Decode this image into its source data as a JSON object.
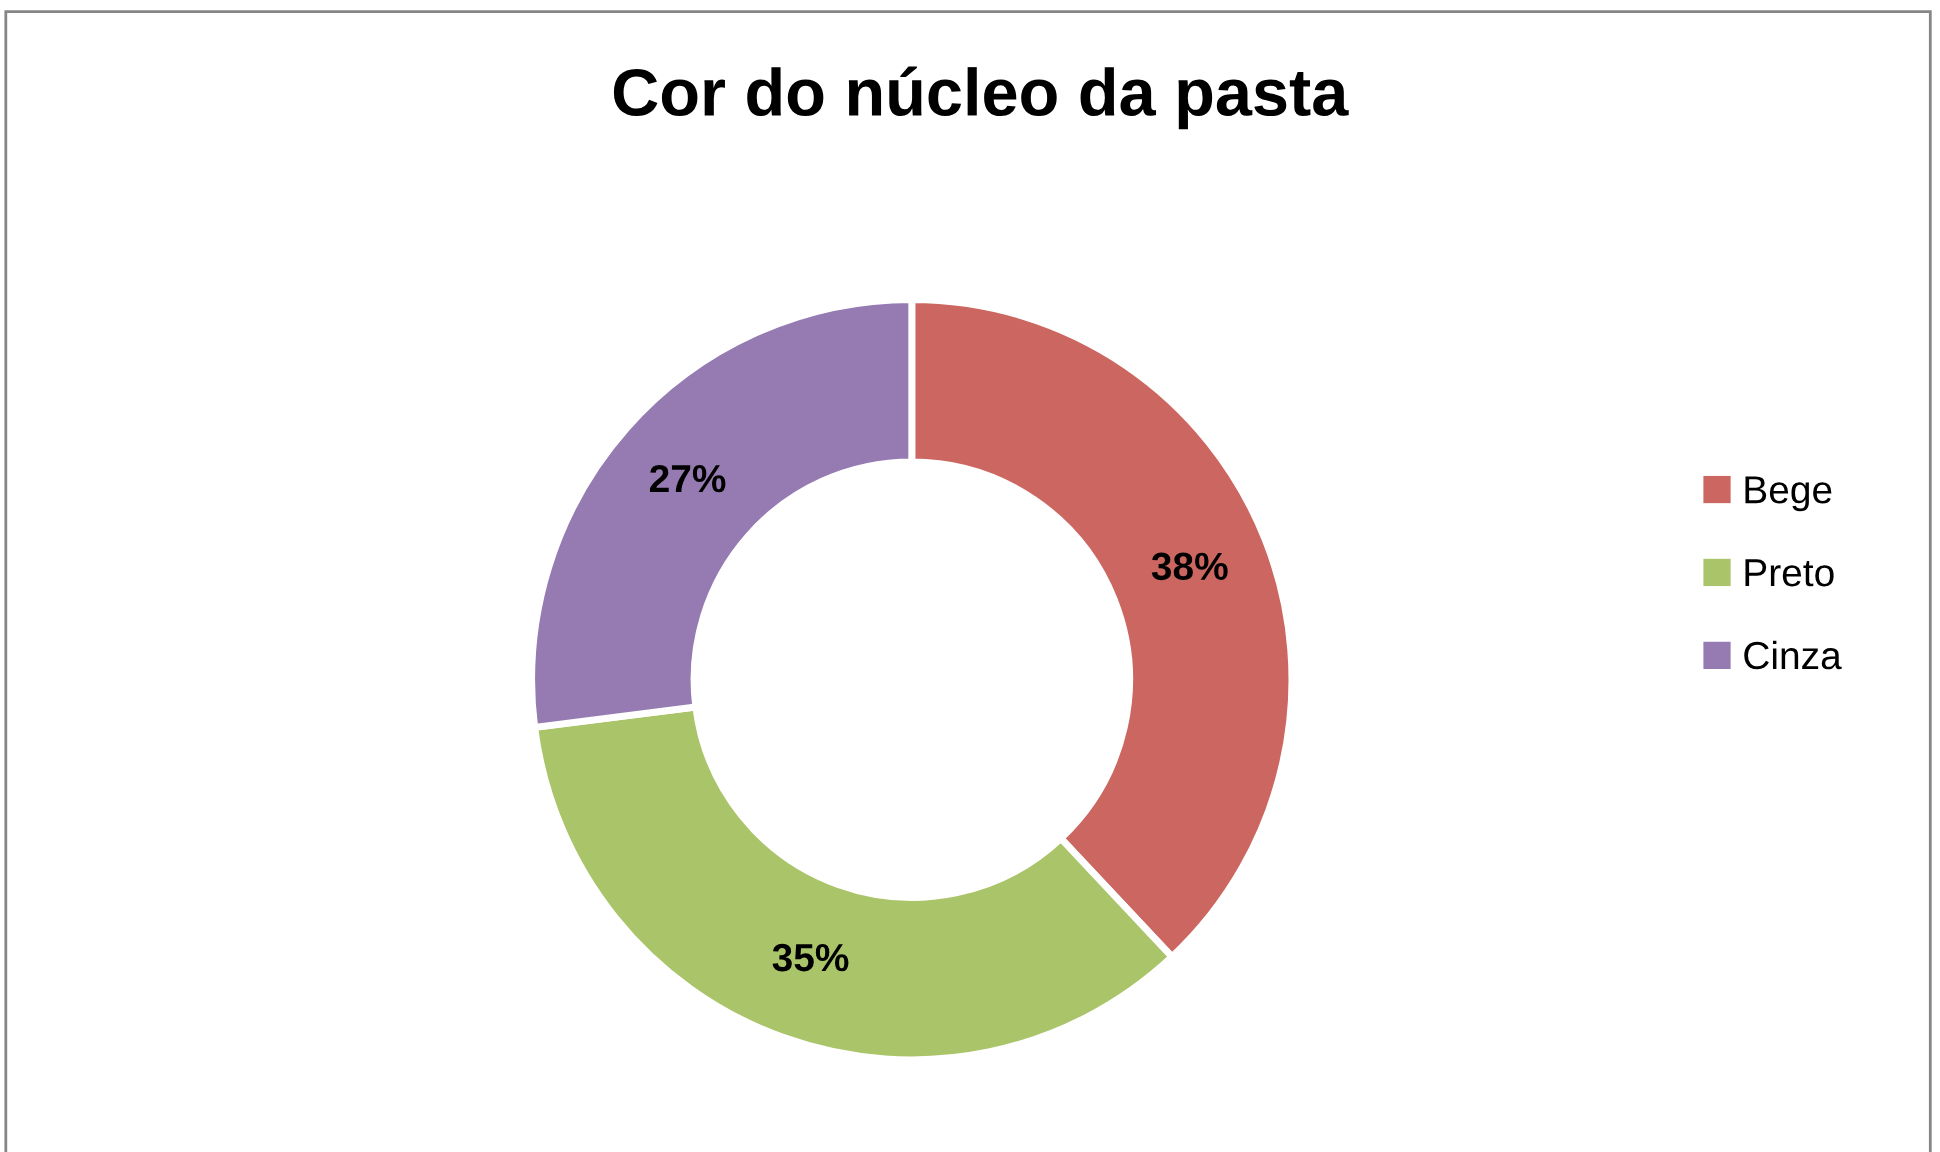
{
  "chart_data": {
    "type": "donut",
    "title": "Cor do núcleo da pasta",
    "categories": [
      "Bege",
      "Preto",
      "Cinza"
    ],
    "values": [
      38,
      35,
      27
    ],
    "colors": [
      "#cc6660",
      "#aac46a",
      "#957bb1"
    ],
    "value_labels": [
      "38%",
      "35%",
      "27%"
    ],
    "legend": "right"
  }
}
